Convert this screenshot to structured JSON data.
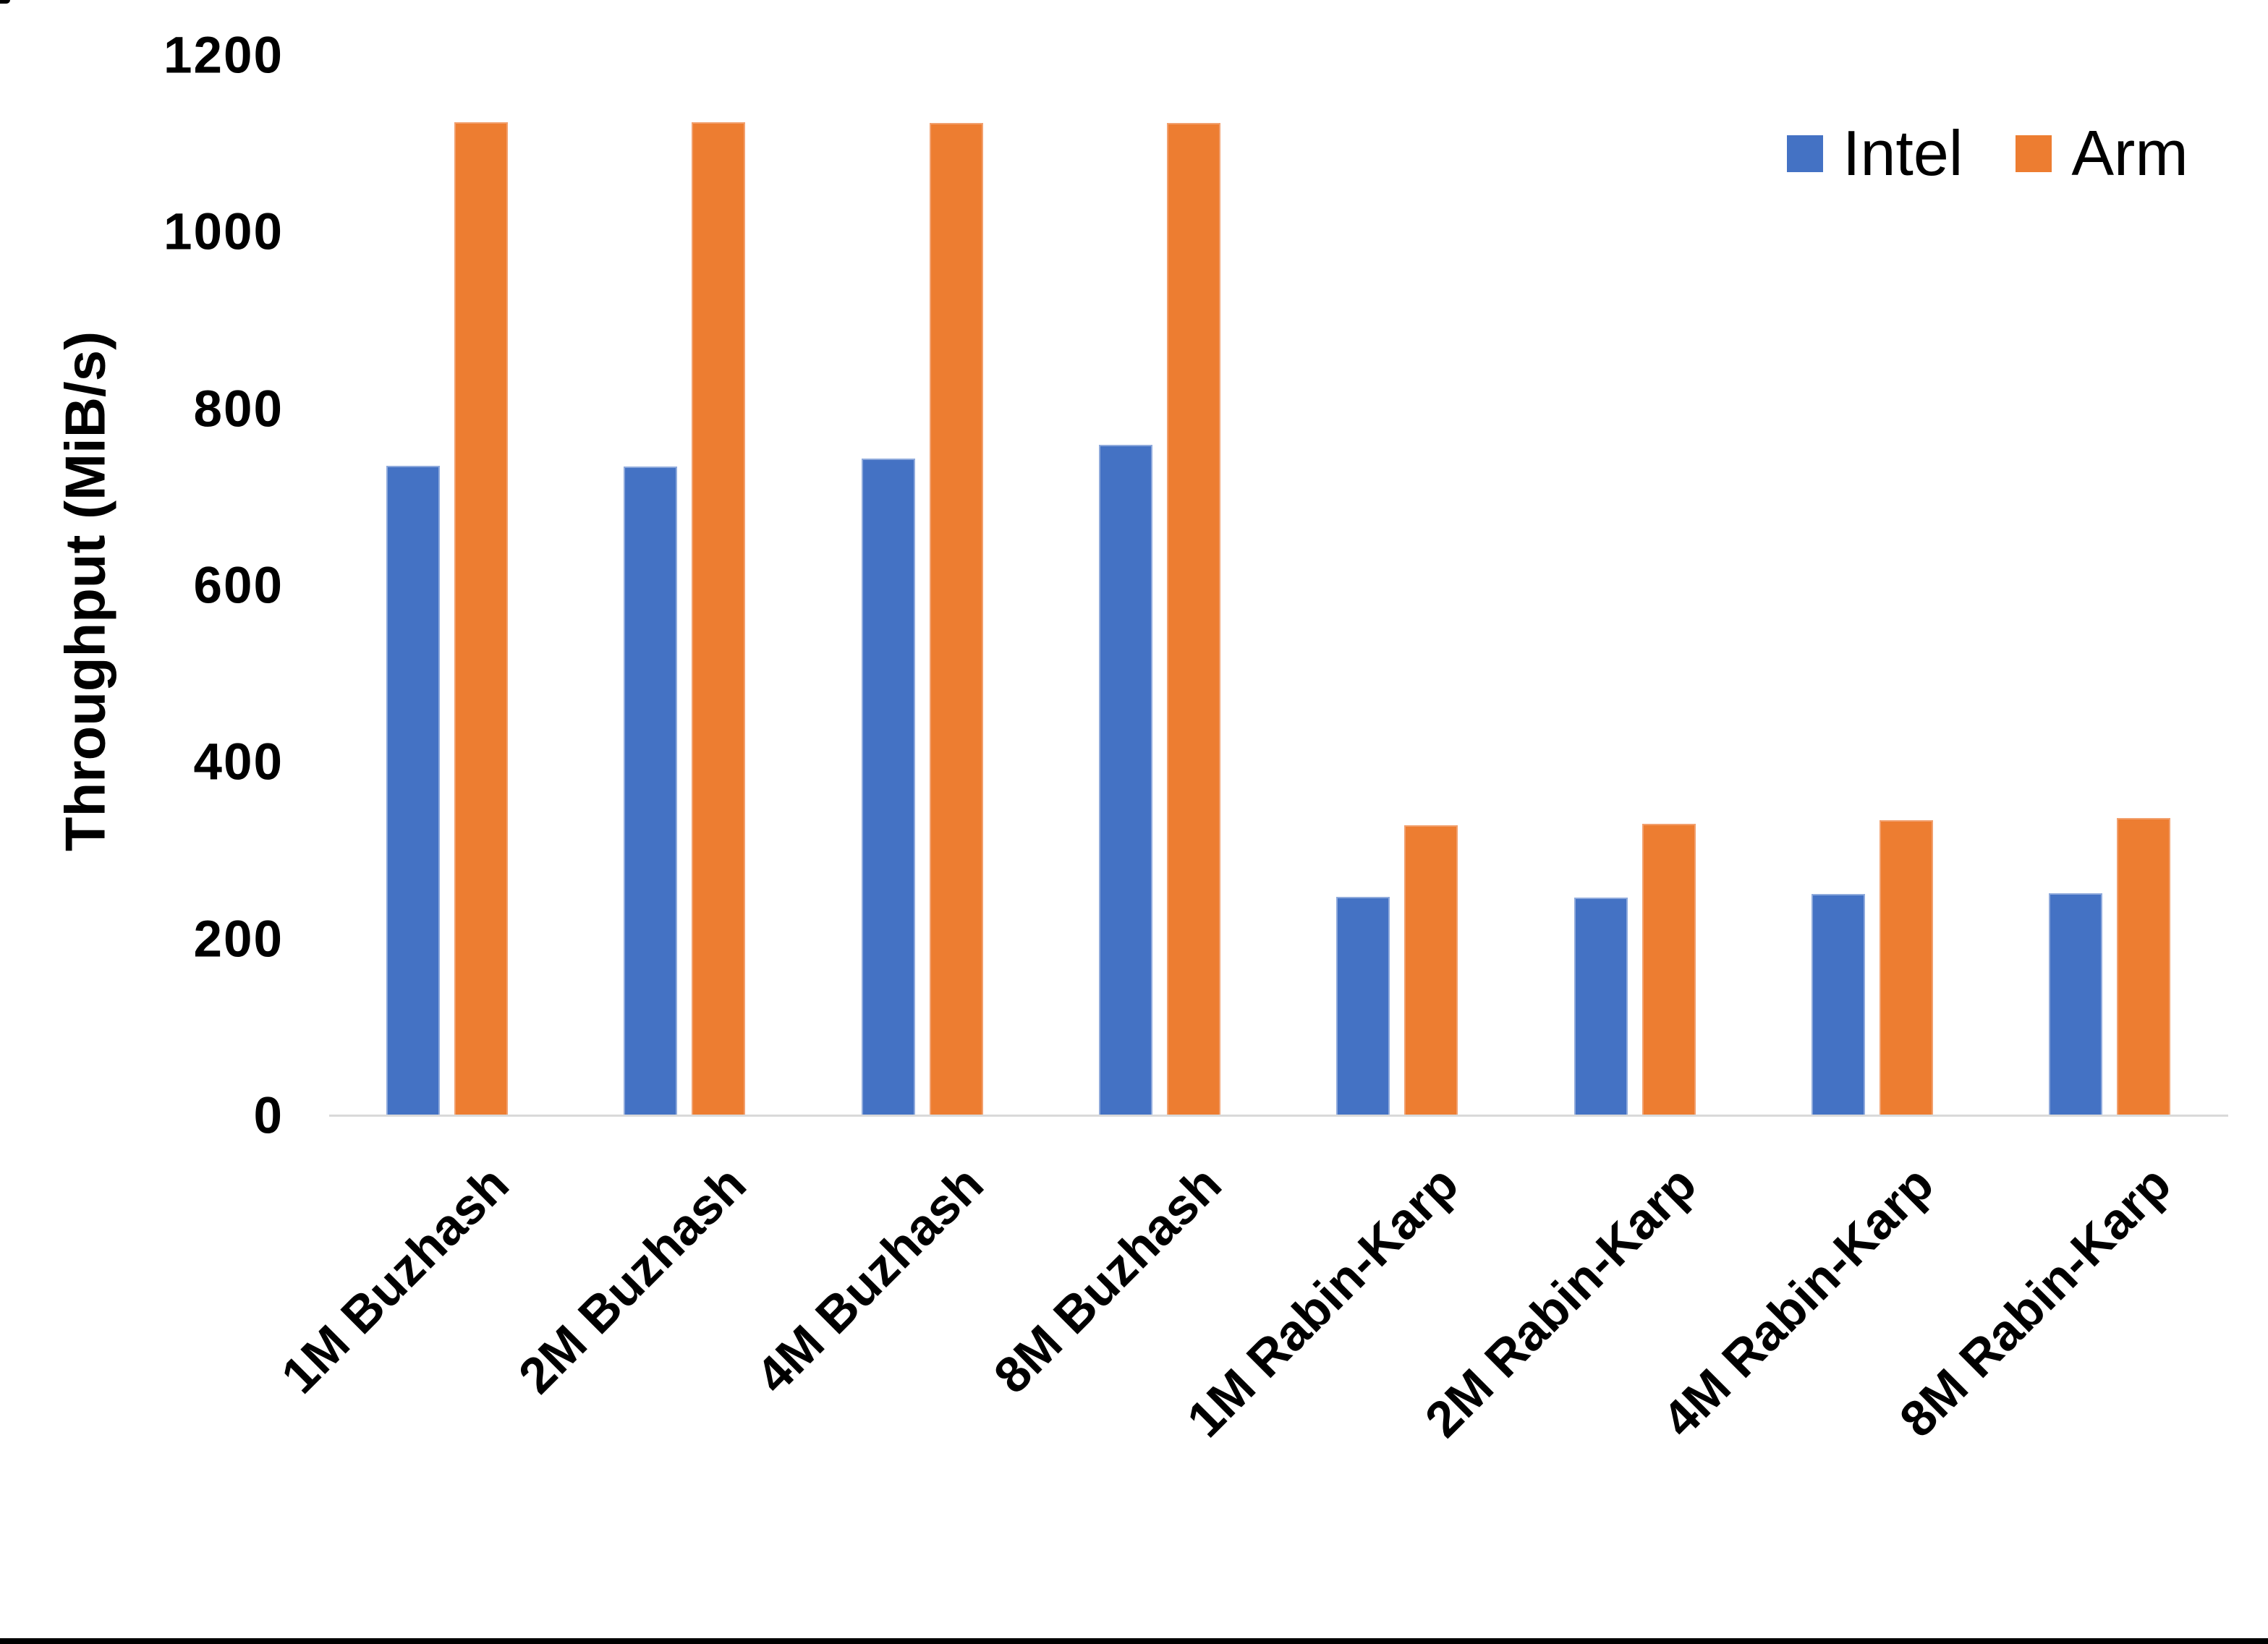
{
  "chart_data": {
    "type": "bar",
    "title": "",
    "xlabel": "",
    "ylabel": "Throughput (MiB/s)",
    "ylim": [
      0,
      1200
    ],
    "yticks": [
      1200,
      1000,
      800,
      600,
      400,
      200,
      0
    ],
    "grid": false,
    "legend_position": "top-right",
    "categories": [
      "1M Buzhash",
      "2M Buzhash",
      "4M Buzhash",
      "8M Buzhash",
      "1M Rabin-Karp",
      "2M Rabin-Karp",
      "4M Rabin-Karp",
      "8M Rabin-Karp"
    ],
    "series": [
      {
        "name": "Intel",
        "color": "#4472C4",
        "values": [
          736,
          735,
          744,
          760,
          248,
          247,
          251,
          252
        ]
      },
      {
        "name": "Arm",
        "color": "#ED7D31",
        "values": [
          1125,
          1125,
          1124,
          1124,
          329,
          331,
          335,
          337
        ]
      }
    ]
  },
  "axes": {
    "y_title": "Throughput (MiB/s)"
  },
  "legend": {
    "items": [
      {
        "label": "Intel",
        "color": "#4472C4"
      },
      {
        "label": "Arm",
        "color": "#ED7D31"
      }
    ]
  },
  "colors": {
    "background": "#FFFFFF",
    "axis_line": "#D9D9D9",
    "text": "#000000",
    "frame": "#000000",
    "intel_bar": "#4472C4",
    "arm_bar": "#ED7D31"
  }
}
